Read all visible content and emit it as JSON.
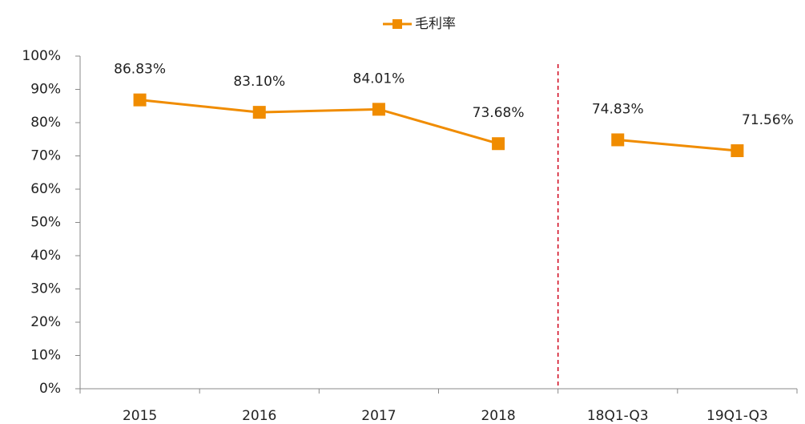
{
  "chart_data": {
    "type": "line",
    "categories": [
      "2015",
      "2016",
      "2017",
      "2018",
      "18Q1-Q3",
      "19Q1-Q3"
    ],
    "series": [
      {
        "name": "毛利率",
        "color": "#f08c00",
        "values": [
          86.83,
          83.1,
          84.01,
          73.68,
          74.83,
          71.56
        ],
        "value_labels": [
          "86.83%",
          "83.10%",
          "84.01%",
          "73.68%",
          "74.83%",
          "71.56%"
        ]
      }
    ],
    "ylim": [
      0,
      100
    ],
    "yticks": [
      {
        "value": 0,
        "label": "0%"
      },
      {
        "value": 10,
        "label": "10%"
      },
      {
        "value": 20,
        "label": "20%"
      },
      {
        "value": 30,
        "label": "30%"
      },
      {
        "value": 40,
        "label": "40%"
      },
      {
        "value": 50,
        "label": "50%"
      },
      {
        "value": 60,
        "label": "60%"
      },
      {
        "value": 70,
        "label": "70%"
      },
      {
        "value": 80,
        "label": "80%"
      },
      {
        "value": 90,
        "label": "90%"
      },
      {
        "value": 100,
        "label": "100%"
      }
    ],
    "divider": {
      "after_index": 3,
      "color": "#d0021b"
    },
    "legend": "top"
  }
}
